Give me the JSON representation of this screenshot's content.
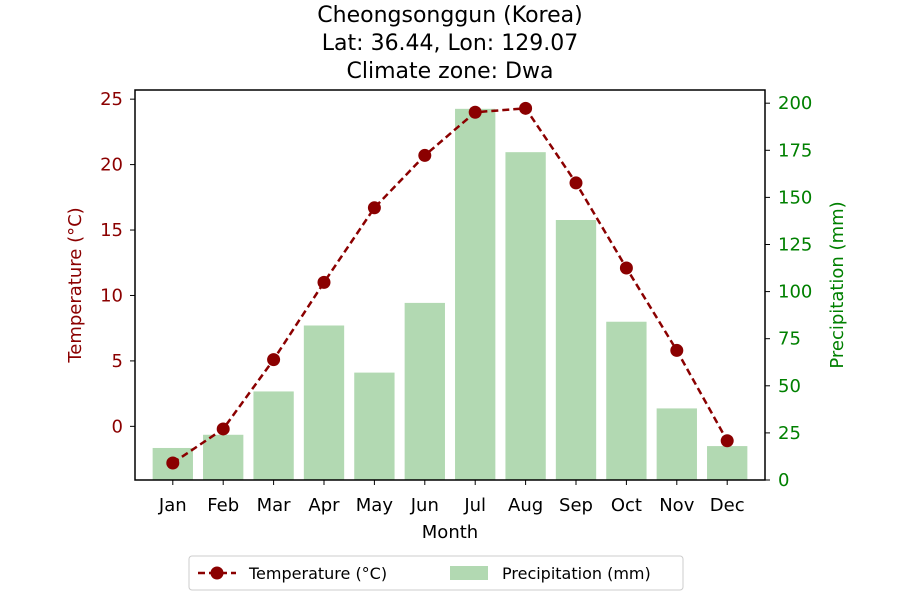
{
  "chart_data": {
    "type": "bar+line",
    "title_lines": [
      "Cheongsonggun (Korea)",
      "Lat: 36.44, Lon: 129.07",
      "Climate zone: Dwa"
    ],
    "xlabel": "Month",
    "categories": [
      "Jan",
      "Feb",
      "Mar",
      "Apr",
      "May",
      "Jun",
      "Jul",
      "Aug",
      "Sep",
      "Oct",
      "Nov",
      "Dec"
    ],
    "y_left": {
      "label": "Temperature (°C)",
      "color": "#8b0000",
      "ylim": [
        -4.1,
        25.7
      ],
      "ticks": [
        0,
        5,
        10,
        15,
        20,
        25
      ]
    },
    "y_right": {
      "label": "Precipitation (mm)",
      "color": "#008000",
      "ylim": [
        0,
        207
      ],
      "ticks": [
        0,
        25,
        50,
        75,
        100,
        125,
        150,
        175,
        200
      ]
    },
    "series": [
      {
        "name": "Temperature (°C)",
        "kind": "line",
        "axis": "left",
        "color": "#8b0000",
        "style": "dashed",
        "marker": "circle",
        "values": [
          -2.8,
          -0.2,
          5.1,
          11.0,
          16.7,
          20.7,
          24.0,
          24.3,
          18.6,
          12.1,
          5.8,
          -1.1
        ]
      },
      {
        "name": "Precipitation (mm)",
        "kind": "bar",
        "axis": "right",
        "color": "#b2d9b2",
        "values": [
          17,
          24,
          47,
          82,
          57,
          94,
          197,
          174,
          138,
          84,
          38,
          18
        ]
      }
    ],
    "legend": {
      "position": "bottom-center",
      "columns": 2
    },
    "grid": false
  }
}
